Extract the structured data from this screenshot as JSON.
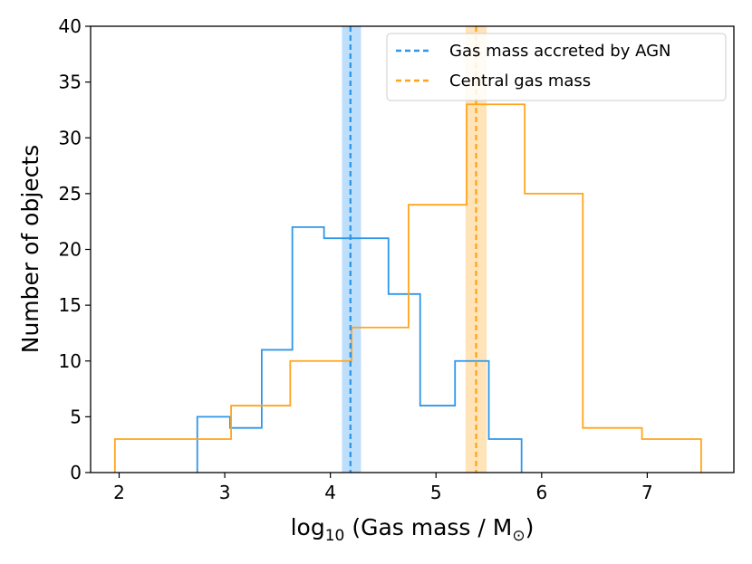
{
  "chart_data": {
    "type": "histogram",
    "title": "",
    "xlabel": "log",
    "xlabel_sub": "10",
    "xlabel_rest": " (Gas mass / M",
    "xlabel_sym": "⊙",
    "xlabel_close": ")",
    "ylabel": "Number of objects",
    "xlim": [
      1.73,
      7.82
    ],
    "ylim": [
      0,
      40
    ],
    "xticks": [
      2,
      3,
      4,
      5,
      6,
      7
    ],
    "yticks": [
      0,
      5,
      10,
      15,
      20,
      25,
      30,
      35,
      40
    ],
    "legend_position": "top-right",
    "series": [
      {
        "name": "Gas mass accreted by AGN",
        "color": "#2f96e8",
        "band_color": "#b3d9fb",
        "edges": [
          2.74,
          3.05,
          3.35,
          3.64,
          3.94,
          4.25,
          4.55,
          4.85,
          5.18,
          5.5,
          5.81
        ],
        "counts": [
          5,
          4,
          11,
          22,
          21,
          21,
          16,
          6,
          10,
          3
        ],
        "line": 4.19,
        "band": [
          4.11,
          4.29
        ]
      },
      {
        "name": "Central gas mass",
        "color": "#ffa51c",
        "band_color": "#ffdfad",
        "edges": [
          1.96,
          3.06,
          3.62,
          4.2,
          4.74,
          5.29,
          5.84,
          6.39,
          6.95,
          7.51
        ],
        "counts": [
          3,
          6,
          10,
          13,
          24,
          33,
          25,
          4,
          3
        ],
        "line": 5.38,
        "band": [
          5.28,
          5.48
        ]
      }
    ]
  }
}
